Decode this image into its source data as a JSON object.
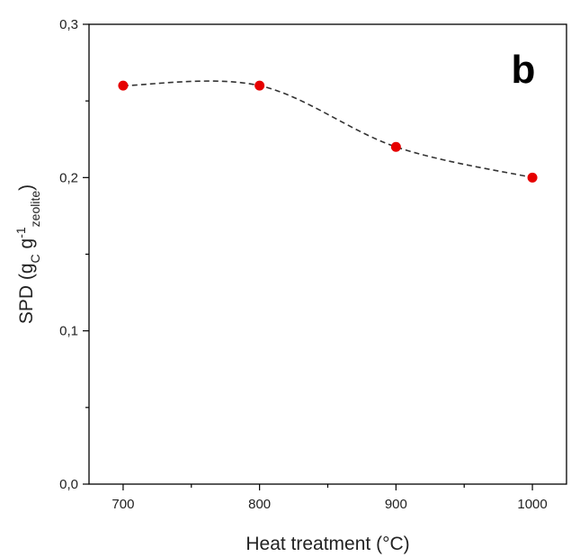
{
  "chart_data": {
    "type": "scatter",
    "panel_label": "b",
    "xlabel": "Heat treatment (°C)",
    "ylabel": {
      "text": "SPD (g",
      "sub1": "C",
      "mid": " g",
      "sup": "-1",
      "sub2": "zeolite",
      "end": ")"
    },
    "x": [
      700,
      800,
      900,
      1000
    ],
    "y": [
      0.26,
      0.26,
      0.22,
      0.2
    ],
    "xlim": [
      675,
      1025
    ],
    "ylim": [
      0.0,
      0.3
    ],
    "x_ticks": [
      700,
      800,
      900,
      1000
    ],
    "x_tick_labels": [
      "700",
      "800",
      "900",
      "1000"
    ],
    "y_ticks": [
      0.0,
      0.1,
      0.2,
      0.3
    ],
    "y_tick_labels": [
      "0,0",
      "0,1",
      "0,2",
      "0,3"
    ],
    "grid": false,
    "marker_color": "#e60000",
    "fit_line": "dashed smooth curve through points",
    "fit_color": "#333333"
  }
}
